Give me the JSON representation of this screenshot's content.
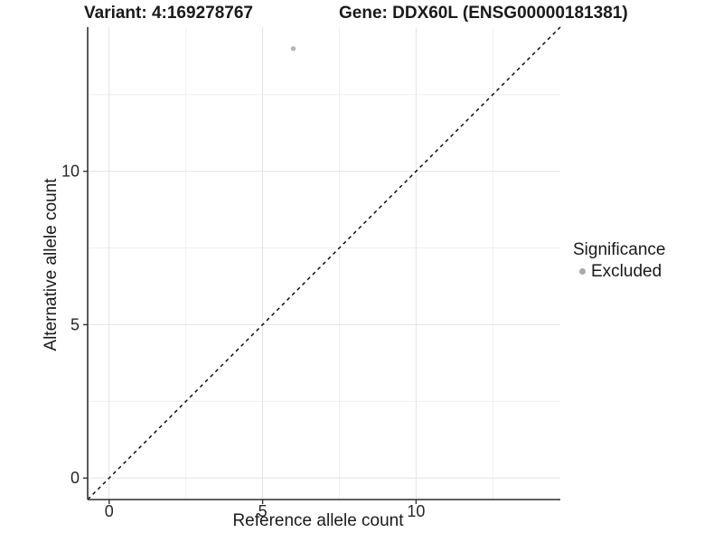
{
  "chart_data": {
    "type": "scatter",
    "titles": [
      "Variant: 4:169278767",
      "Gene: DDX60L (ENSG00000181381)"
    ],
    "xlabel": "Reference allele count",
    "ylabel": "Alternative allele count",
    "xlim": [
      -0.7,
      14.7
    ],
    "ylim": [
      -0.7,
      14.7
    ],
    "x_major_ticks": [
      0,
      5,
      10
    ],
    "y_major_ticks": [
      0,
      5,
      10
    ],
    "x_minor_ticks": [
      2.5,
      7.5,
      12.5
    ],
    "y_minor_ticks": [
      2.5,
      7.5,
      12.5
    ],
    "grid": "major and minor gridlines, light grey on white panel",
    "series": [
      {
        "name": "Excluded",
        "marker": "circle",
        "color": "#b5b5b5",
        "points": [
          {
            "x": 6,
            "y": 14
          }
        ]
      }
    ],
    "reference_line": {
      "kind": "identity y = x",
      "slope": 1,
      "intercept": 0,
      "style": "dashed",
      "color": "#000000"
    },
    "legend": {
      "title": "Significance",
      "position": "right",
      "entries": [
        {
          "label": "Excluded",
          "color": "#a9a9a9"
        }
      ]
    }
  },
  "style": {
    "background": "#ffffff",
    "grid_major": "#e3e3e3",
    "grid_minor": "#efefef",
    "axis_line": "#4a4a4a",
    "tick_color": "#333333",
    "text_color": "#1a1a1a"
  }
}
